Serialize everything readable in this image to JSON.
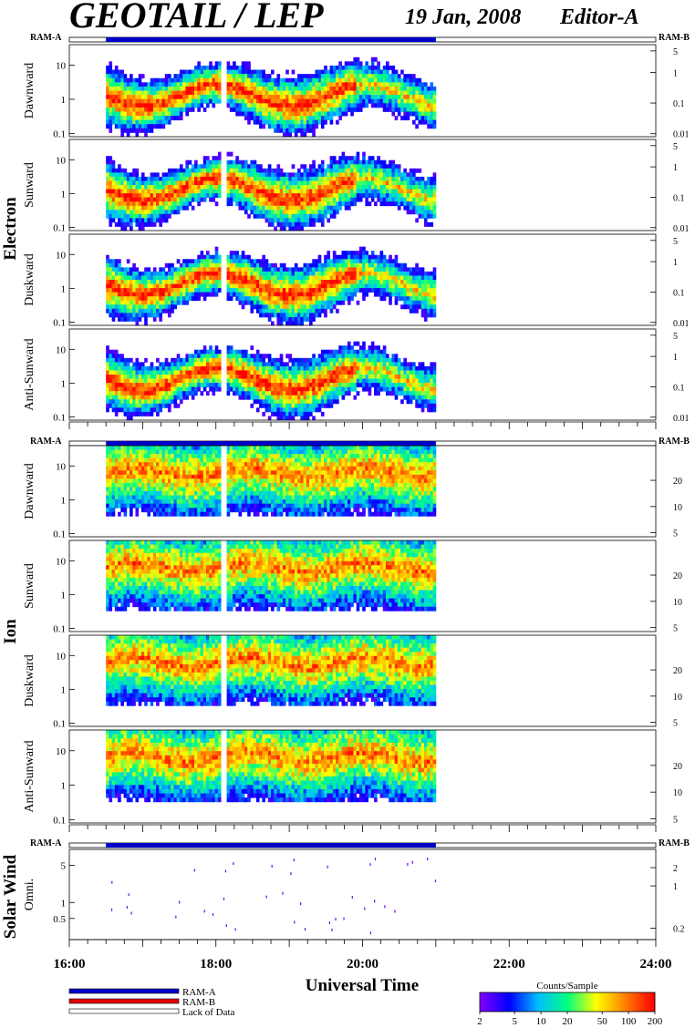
{
  "header": {
    "title": "GEOTAIL / LEP",
    "date": "19 Jan, 2008",
    "editor": "Editor-A"
  },
  "chart_data": {
    "type": "heatmap",
    "xlabel": "Universal Time",
    "x_ticks": [
      "16:00",
      "18:00",
      "20:00",
      "22:00",
      "24:00"
    ],
    "x_range_hours": [
      16,
      24
    ],
    "data_coverage_hours": [
      16.5,
      21.0
    ],
    "data_gap_hours": [
      18.05,
      18.15
    ],
    "colorbar": {
      "title": "Counts/Sample",
      "ticks": [
        "2",
        "5",
        "10",
        "20",
        "50",
        "100",
        "200"
      ],
      "values": [
        2,
        5,
        10,
        20,
        50,
        100,
        200
      ],
      "colors": [
        "#7f00ff",
        "#0000ff",
        "#00c0ff",
        "#00ff80",
        "#ffff00",
        "#ff8000",
        "#ff0000"
      ]
    },
    "legend": [
      {
        "label": "RAM-A",
        "color": "#0000c8"
      },
      {
        "label": "RAM-B",
        "color": "#e00000"
      },
      {
        "label": "Lack of Data",
        "color": "#ffffff"
      }
    ],
    "groups": [
      {
        "name": "Electron",
        "ram_left": "RAM-A",
        "ram_right": "RAM-B",
        "left_ticks": [
          "10",
          "1",
          "0.1"
        ],
        "left_tick_values": [
          10,
          1,
          0.1
        ],
        "left_range": [
          0.08,
          40
        ],
        "right_ticks": [
          "5",
          "1",
          "0.1",
          "0.01"
        ],
        "right_tick_values": [
          5,
          1,
          0.1,
          0.01
        ],
        "right_range": [
          0.008,
          8
        ],
        "panels": [
          {
            "label": "Dawnward"
          },
          {
            "label": "Sunward"
          },
          {
            "label": "Duskward"
          },
          {
            "label": "Anti-Sunward"
          }
        ]
      },
      {
        "name": "Ion",
        "ram_left": "RAM-A",
        "ram_right": "RAM-B",
        "left_ticks": [
          "10",
          "1",
          "0.1"
        ],
        "left_tick_values": [
          10,
          1,
          0.1
        ],
        "left_range": [
          0.08,
          40
        ],
        "right_ticks": [
          "20",
          "10",
          "5"
        ],
        "right_tick_values": [
          20,
          10,
          5
        ],
        "right_range": [
          4.5,
          50
        ],
        "panels": [
          {
            "label": "Dawnward"
          },
          {
            "label": "Sunward"
          },
          {
            "label": "Duskward"
          },
          {
            "label": "Anti-Sunward"
          }
        ]
      },
      {
        "name": "Solar Wind",
        "ram_left": "RAM-A",
        "ram_right": "RAM-B",
        "left_ticks": [
          "5",
          "1",
          "0.5"
        ],
        "left_tick_values": [
          5,
          1,
          0.5
        ],
        "left_range": [
          0.2,
          10
        ],
        "right_ticks": [
          "2",
          "1",
          "0.2"
        ],
        "right_tick_values": [
          2,
          1,
          0.2
        ],
        "right_range": [
          0.13,
          4
        ],
        "panels": [
          {
            "label": "Omni."
          }
        ]
      }
    ]
  }
}
